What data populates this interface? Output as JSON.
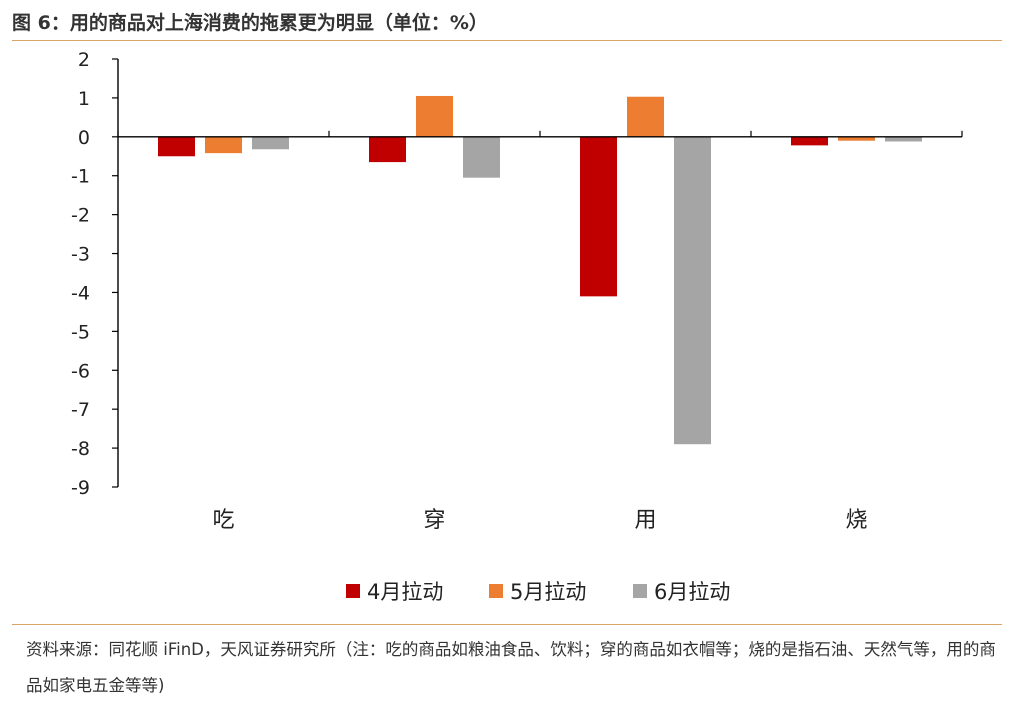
{
  "title": "图 6：用的商品对上海消费的拖累更为明显（单位：%）",
  "source": "资料来源：同花顺 iFinD，天风证券研究所（注：吃的商品如粮油食品、饮料；穿的商品如衣帽等；烧的是指石油、天然气等，用的商品如家电五金等等)",
  "colors": {
    "rule": "#d9a36a"
  },
  "chart_data": {
    "type": "bar",
    "title": "用的商品对上海消费的拖累更为明显（单位：%）",
    "categories": [
      "吃",
      "穿",
      "用",
      "烧"
    ],
    "series": [
      {
        "name": "4月拉动",
        "color": "#c00000",
        "values": [
          -0.5,
          -0.65,
          -4.1,
          -0.22
        ]
      },
      {
        "name": "5月拉动",
        "color": "#ed7d31",
        "values": [
          -0.42,
          1.05,
          1.03,
          -0.1
        ]
      },
      {
        "name": "6月拉动",
        "color": "#a5a5a5",
        "values": [
          -0.32,
          -1.05,
          -7.9,
          -0.12
        ]
      }
    ],
    "ylim": [
      -9,
      2
    ],
    "yticks": [
      2,
      1,
      0,
      -1,
      -2,
      -3,
      -4,
      -5,
      -6,
      -7,
      -8,
      -9
    ],
    "grid": false,
    "legend_position": "bottom-center"
  }
}
